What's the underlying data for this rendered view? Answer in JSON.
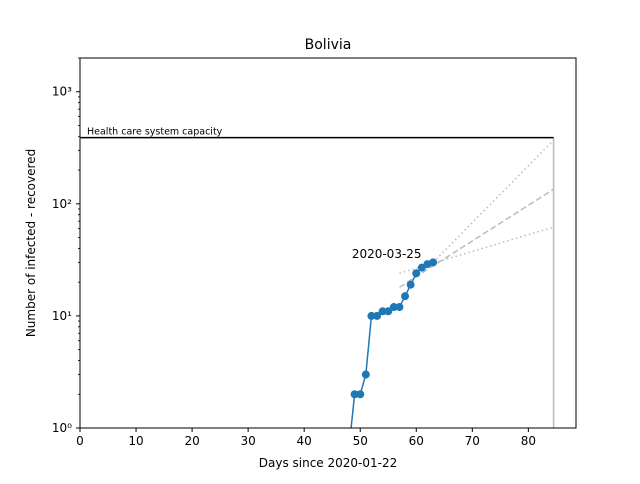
{
  "chart_data": {
    "type": "line",
    "title": "Bolivia",
    "xlabel": "Days since 2020-01-22",
    "ylabel": "Number of infected - recovered",
    "xlim": [
      0,
      88.5
    ],
    "ylim": [
      1,
      2000
    ],
    "yscale": "log",
    "grid": false,
    "x_ticks": [
      0,
      10,
      20,
      30,
      40,
      50,
      60,
      70,
      80
    ],
    "x_tick_labels": [
      "0",
      "10",
      "20",
      "30",
      "40",
      "50",
      "60",
      "70",
      "80"
    ],
    "y_ticks": [
      1,
      10,
      100,
      1000
    ],
    "y_tick_labels": [
      "10⁰",
      "10¹",
      "10²",
      "10³"
    ],
    "series": [
      {
        "color": "#1f77b4",
        "marker": "circle",
        "x": [
          48,
          49,
          50,
          51,
          52,
          53,
          54,
          55,
          56,
          57,
          58,
          59,
          60,
          61,
          62,
          63
        ],
        "y": [
          0,
          2,
          2,
          3,
          10,
          10,
          11,
          11,
          12,
          12,
          15,
          19,
          24,
          27,
          29,
          30
        ]
      }
    ],
    "capacity": {
      "label": "Health care system capacity",
      "value": 390,
      "x_start": 0,
      "x_end": 84.5,
      "color": "#000000"
    },
    "projections": [
      {
        "style": "dotted",
        "color": "#bbbbbb",
        "x": [
          63,
          84.5
        ],
        "y": [
          30,
          370
        ]
      },
      {
        "style": "dashed",
        "color": "#bbbbbb",
        "x": [
          57,
          84.5
        ],
        "y": [
          18,
          135
        ]
      },
      {
        "style": "dotted",
        "color": "#bbbbbb",
        "x": [
          57,
          84.5
        ],
        "y": [
          24,
          62
        ]
      }
    ],
    "vertical_line": {
      "x": 84.5,
      "color": "#bbbbbb"
    },
    "annotation": {
      "text": "2020-03-25",
      "x": 48.5,
      "y": 33
    }
  }
}
